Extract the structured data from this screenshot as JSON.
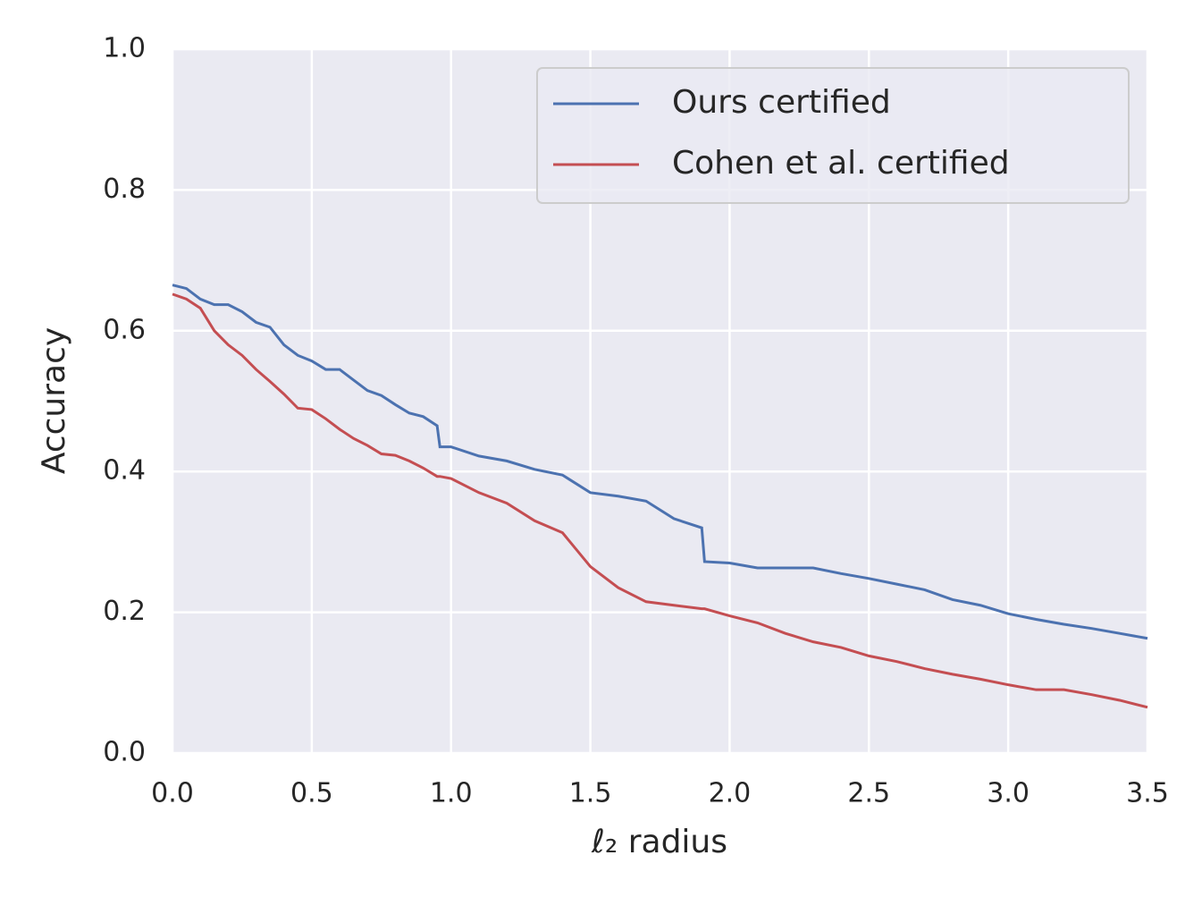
{
  "chart_data": {
    "type": "line",
    "xlabel": "ℓ₂ radius",
    "ylabel": "Accuracy",
    "x": [
      0,
      0.05,
      0.1,
      0.15,
      0.2,
      0.25,
      0.3,
      0.35,
      0.4,
      0.45,
      0.5,
      0.55,
      0.6,
      0.65,
      0.7,
      0.75,
      0.8,
      0.85,
      0.9,
      0.95,
      0.96,
      1.0,
      1.1,
      1.2,
      1.3,
      1.4,
      1.5,
      1.6,
      1.7,
      1.8,
      1.9,
      1.91,
      2.0,
      2.1,
      2.2,
      2.3,
      2.4,
      2.5,
      2.6,
      2.7,
      2.8,
      2.9,
      3.0,
      3.1,
      3.2,
      3.3,
      3.4,
      3.5
    ],
    "series": [
      {
        "name": "Ours certified",
        "color": "#4c72b0",
        "values": [
          0.665,
          0.66,
          0.645,
          0.637,
          0.637,
          0.627,
          0.612,
          0.605,
          0.58,
          0.565,
          0.557,
          0.545,
          0.545,
          0.53,
          0.515,
          0.508,
          0.495,
          0.483,
          0.478,
          0.465,
          0.435,
          0.435,
          0.422,
          0.415,
          0.403,
          0.395,
          0.37,
          0.365,
          0.358,
          0.333,
          0.32,
          0.272,
          0.27,
          0.263,
          0.263,
          0.263,
          0.255,
          0.248,
          0.24,
          0.232,
          0.218,
          0.21,
          0.198,
          0.19,
          0.183,
          0.177,
          0.17,
          0.163
        ]
      },
      {
        "name": "Cohen et al. certified",
        "color": "#c44e52",
        "values": [
          0.652,
          0.645,
          0.632,
          0.6,
          0.58,
          0.565,
          0.545,
          0.528,
          0.51,
          0.49,
          0.488,
          0.475,
          0.46,
          0.447,
          0.437,
          0.425,
          0.423,
          0.415,
          0.405,
          0.393,
          0.393,
          0.39,
          0.37,
          0.355,
          0.33,
          0.313,
          0.265,
          0.235,
          0.215,
          0.21,
          0.205,
          0.205,
          0.195,
          0.185,
          0.17,
          0.158,
          0.15,
          0.138,
          0.13,
          0.12,
          0.112,
          0.105,
          0.097,
          0.09,
          0.09,
          0.083,
          0.075,
          0.065
        ]
      }
    ],
    "xlim": [
      0,
      3.5
    ],
    "xticks": [
      {
        "value": 0,
        "label": "0.0"
      },
      0.5,
      {
        "value": 1,
        "label": "1.0"
      },
      1.5,
      {
        "value": 2,
        "label": "2.0"
      },
      2.5,
      {
        "value": 3,
        "label": "3.0"
      },
      3.5
    ],
    "ylim": [
      0,
      1
    ],
    "yticks": [
      {
        "value": 0,
        "label": "0.0"
      },
      0.2,
      0.4,
      0.6,
      0.8,
      {
        "value": 1,
        "label": "1.0"
      }
    ],
    "grid": true,
    "legend": "upper right",
    "background": "#eaeaf2"
  }
}
